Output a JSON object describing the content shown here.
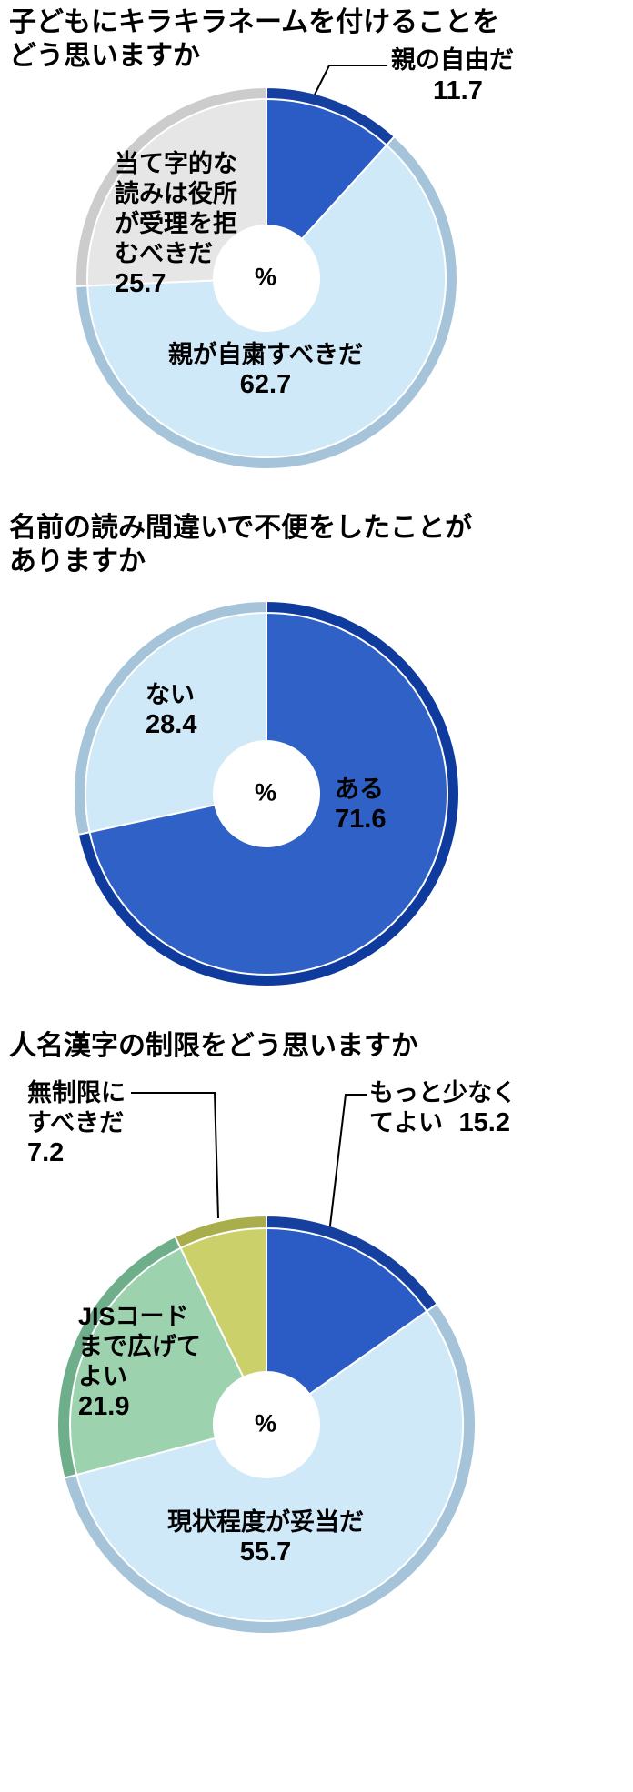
{
  "page": {
    "background": "#ffffff",
    "unit": "%"
  },
  "chart_data": [
    {
      "type": "pie",
      "donut": true,
      "title": "子どもにキラキラネームを付けることをどう思いますか",
      "title_lines": [
        "子どもにキラキラネームを付けることを",
        "どう思いますか"
      ],
      "unit": "%",
      "center_label": "%",
      "start_angle": "top",
      "direction": "clockwise",
      "legend": "none",
      "slices": [
        {
          "label": "親の自由だ",
          "lines": [
            "親の自由だ"
          ],
          "value": 11.7,
          "color": "#2b5cc5",
          "rim_color": "#16409f",
          "label_position": "outside-top-right"
        },
        {
          "label": "親が自粛すべきだ",
          "lines": [
            "親が自粛すべきだ"
          ],
          "value": 62.7,
          "color": "#cfe9f8",
          "rim_color": "#a5c4da",
          "label_position": "inside-bottom"
        },
        {
          "label": "当て字的な読みは役所が受理を拒むべきだ",
          "lines": [
            "当て字的な",
            "読みは役所",
            "が受理を拒",
            "むべきだ"
          ],
          "value": 25.7,
          "color": "#e6e6e6",
          "rim_color": "#cccccc",
          "label_position": "inside-upper-left"
        }
      ]
    },
    {
      "type": "pie",
      "donut": true,
      "title": "名前の読み間違いで不便をしたことがありますか",
      "title_lines": [
        "名前の読み間違いで不便をしたことが",
        "ありますか"
      ],
      "unit": "%",
      "center_label": "%",
      "start_angle": "top",
      "direction": "clockwise",
      "legend": "none",
      "slices": [
        {
          "label": "ある",
          "lines": [
            "ある"
          ],
          "value": 71.6,
          "color": "#2f61c6",
          "rim_color": "#0f3a9e",
          "label_position": "inside-right"
        },
        {
          "label": "ない",
          "lines": [
            "ない"
          ],
          "value": 28.4,
          "color": "#cfe9f8",
          "rim_color": "#a5c4da",
          "label_position": "inside-upper-left"
        }
      ]
    },
    {
      "type": "pie",
      "donut": true,
      "title": "人名漢字の制限をどう思いますか",
      "title_lines": [
        "人名漢字の制限をどう思いますか"
      ],
      "unit": "%",
      "center_label": "%",
      "start_angle": "top",
      "direction": "clockwise",
      "legend": "none",
      "slices": [
        {
          "label": "もっと少なくてよい",
          "lines": [
            "もっと少なく",
            "てよい"
          ],
          "value": 15.2,
          "color": "#2b5cc5",
          "rim_color": "#16409f",
          "label_position": "outside-top-right"
        },
        {
          "label": "現状程度が妥当だ",
          "lines": [
            "現状程度が妥当だ"
          ],
          "value": 55.7,
          "color": "#cfe9f8",
          "rim_color": "#a5c4da",
          "label_position": "inside-bottom"
        },
        {
          "label": "JISコードまで広げてよい",
          "lines": [
            "JISコード",
            "まで広げて",
            "よい"
          ],
          "value": 21.9,
          "color": "#9dd2ae",
          "rim_color": "#6fae8b",
          "label_position": "inside-left"
        },
        {
          "label": "無制限にすべきだ",
          "lines": [
            "無制限に",
            "すべきだ"
          ],
          "value": 7.2,
          "color": "#ccd06a",
          "rim_color": "#a9ae4c",
          "label_position": "outside-top-left"
        }
      ]
    }
  ]
}
